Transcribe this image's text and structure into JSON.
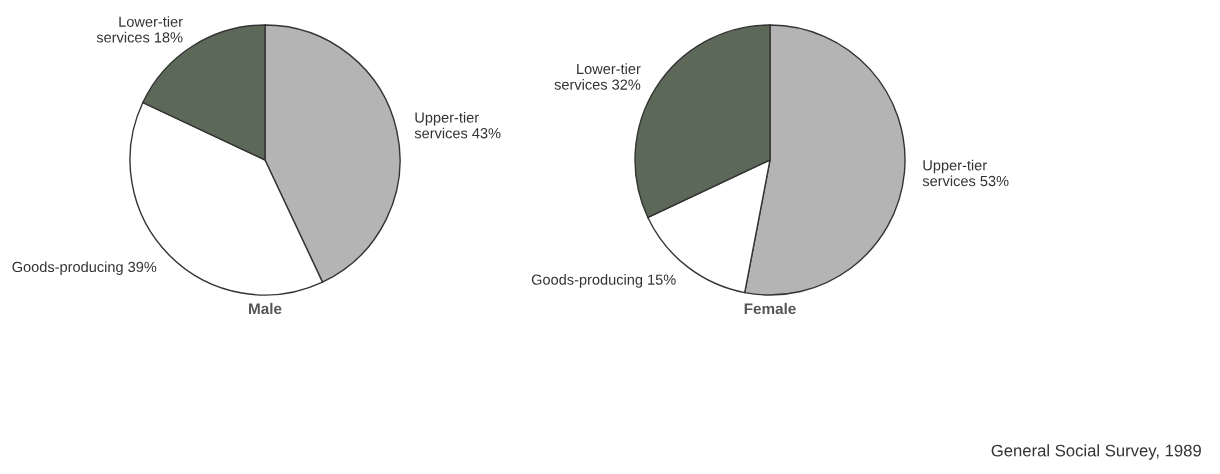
{
  "chart_data": [
    {
      "type": "pie",
      "title": "Male",
      "categories": [
        "Upper-tier\nservices",
        "Goods-producing",
        "Lower-tier\nservices"
      ],
      "values": [
        43,
        39,
        18
      ],
      "value_labels": [
        "43%",
        "39%",
        "18%"
      ],
      "colors": [
        "#b4b4b4",
        "#ffffff",
        "#5d6958"
      ]
    },
    {
      "type": "pie",
      "title": "Female",
      "categories": [
        "Upper-tier\nservices",
        "Goods-producing",
        "Lower-tier\nservices"
      ],
      "values": [
        53,
        15,
        32
      ],
      "value_labels": [
        "53%",
        "15%",
        "32%"
      ],
      "colors": [
        "#b4b4b4",
        "#ffffff",
        "#5d6958"
      ],
      "annotations": [
        "General Social Survey, 1989"
      ]
    }
  ]
}
